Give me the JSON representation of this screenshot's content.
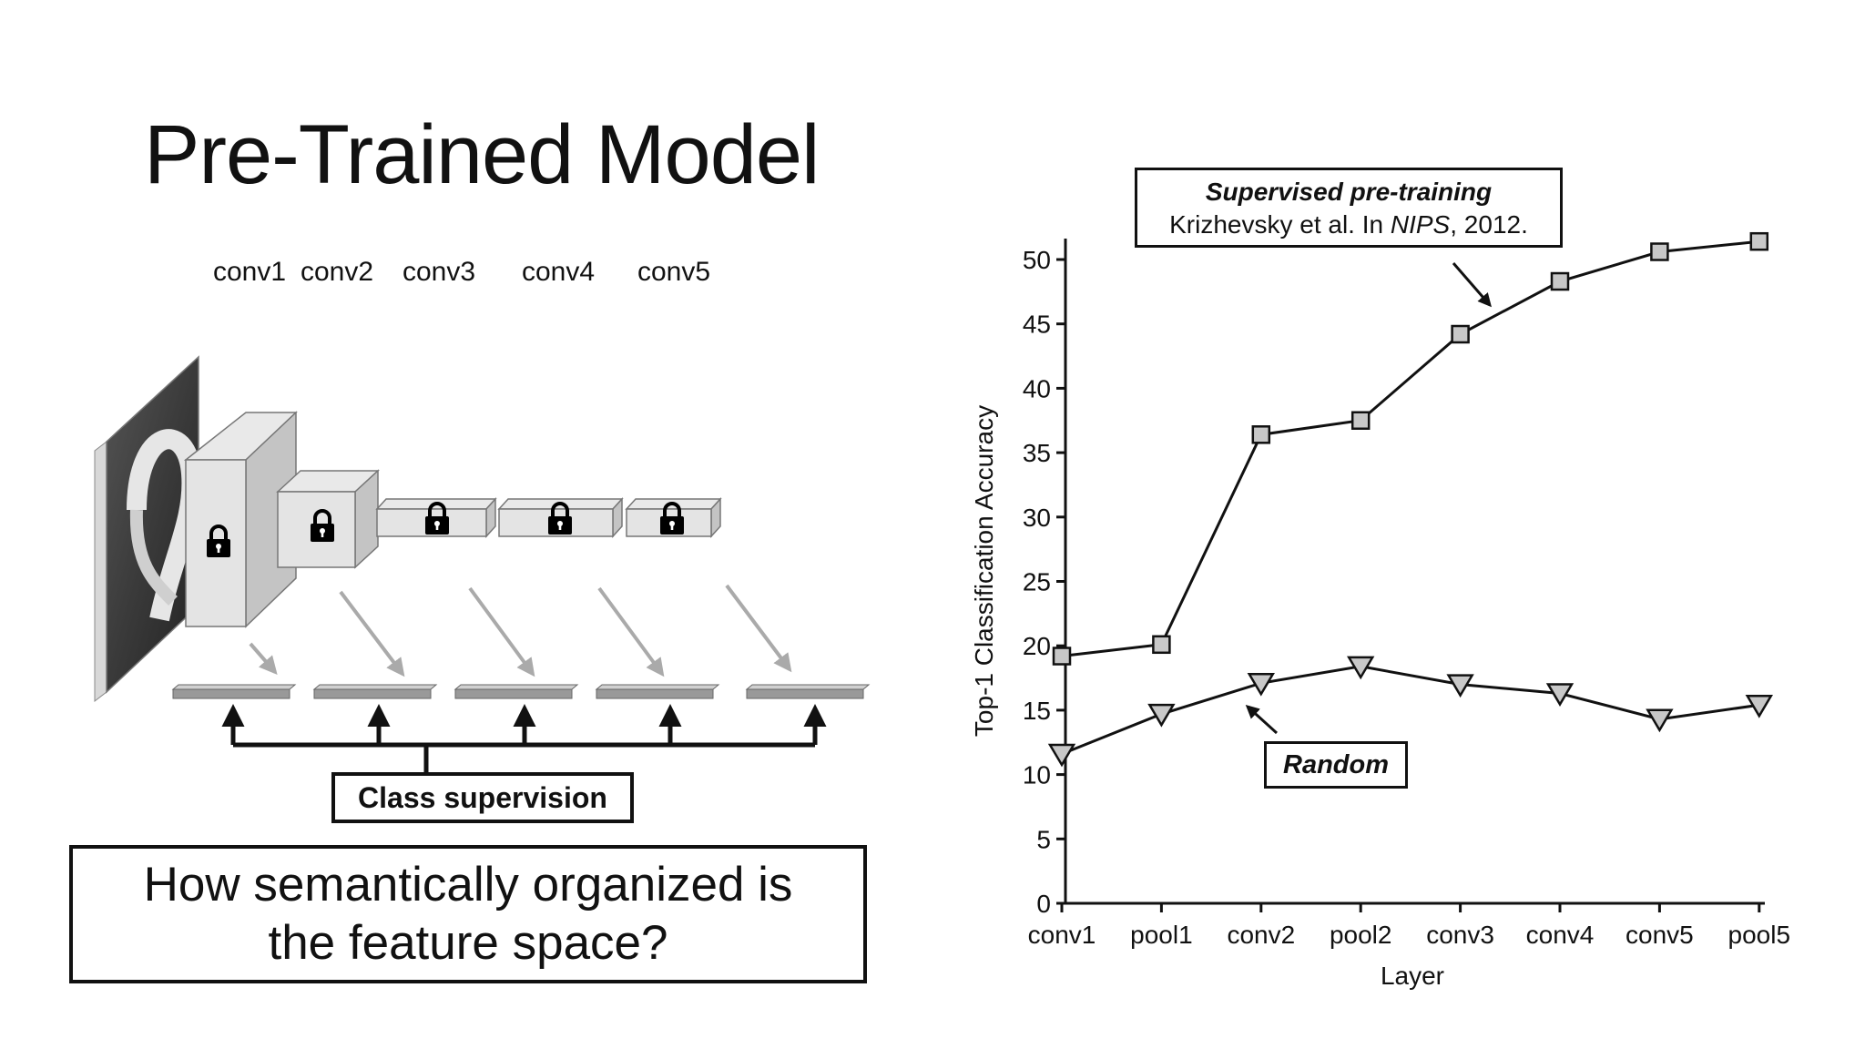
{
  "slide": {
    "title": "Pre-Trained Model",
    "layers": [
      "conv1",
      "conv2",
      "conv3",
      "conv4",
      "conv5"
    ],
    "class_supervision": "Class supervision",
    "question_line1": "How semantically organized is",
    "question_line2": "the feature space?",
    "icons": [
      "lock-icon",
      "input-image",
      "feature-arrow"
    ]
  },
  "chart_data": {
    "type": "line",
    "categories": [
      "conv1",
      "pool1",
      "conv2",
      "pool2",
      "conv3",
      "conv4",
      "conv5",
      "pool5"
    ],
    "series": [
      {
        "marker": "square",
        "color": "#c8c8c8",
        "values": [
          19.2,
          20.1,
          36.4,
          37.5,
          44.2,
          48.3,
          50.6,
          51.4
        ]
      },
      {
        "marker": "triangle-down",
        "color": "#c8c8c8",
        "values": [
          11.6,
          14.7,
          17.1,
          18.4,
          17.0,
          16.3,
          14.3,
          15.4
        ]
      }
    ],
    "xlabel": "Layer",
    "ylabel": "Top-1 Classification Accuracy",
    "ylim": [
      0,
      50
    ],
    "yticks": [
      0,
      5,
      10,
      15,
      20,
      25,
      30,
      35,
      40,
      45,
      50
    ],
    "annotations": {
      "supervised_title": "Supervised pre-training",
      "supervised_cite_a": "Krizhevsky et al. In ",
      "supervised_cite_venue": "NIPS",
      "supervised_cite_b": ", 2012.",
      "random": "Random"
    },
    "grid": false
  }
}
